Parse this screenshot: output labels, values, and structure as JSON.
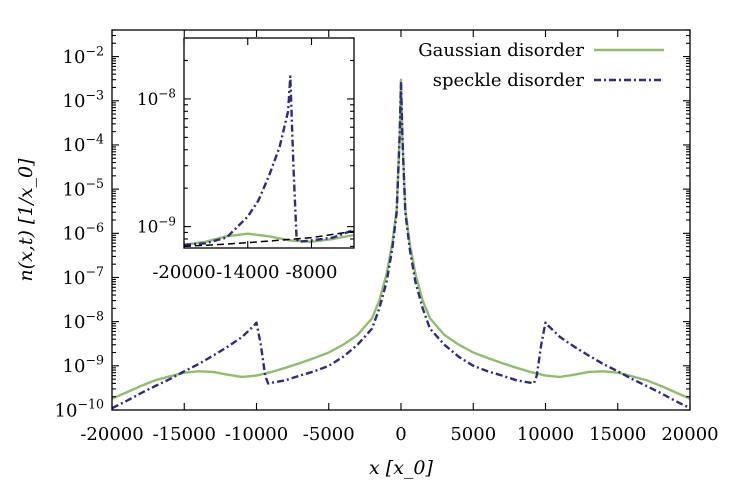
{
  "chart_data": {
    "type": "line",
    "title": "",
    "xlabel": "x [x_0]",
    "ylabel": "n(x,t) [1/x_0]",
    "xlim": [
      -20000,
      20000
    ],
    "ylim": [
      1e-10,
      0.04
    ],
    "yscale": "log",
    "grid": false,
    "legend_position": "top-right",
    "x_ticks": [
      -20000,
      -15000,
      -10000,
      -5000,
      0,
      5000,
      10000,
      15000,
      20000
    ],
    "x_tick_labels": [
      "-20000",
      "-15000",
      "-10000",
      "-5000",
      "0",
      "5000",
      "10000",
      "15000",
      "20000"
    ],
    "y_ticks": [
      1e-10,
      1e-09,
      1e-08,
      1e-07,
      1e-06,
      1e-05,
      0.0001,
      0.001,
      0.01
    ],
    "y_tick_labels": [
      {
        "base": "10",
        "exp": "−10"
      },
      {
        "base": "10",
        "exp": "−9"
      },
      {
        "base": "10",
        "exp": "−8"
      },
      {
        "base": "10",
        "exp": "−7"
      },
      {
        "base": "10",
        "exp": "−6"
      },
      {
        "base": "10",
        "exp": "−5"
      },
      {
        "base": "10",
        "exp": "−4"
      },
      {
        "base": "10",
        "exp": "−3"
      },
      {
        "base": "10",
        "exp": "−2"
      }
    ],
    "series": [
      {
        "name": "Gaussian disorder",
        "color": "#8fbe6b",
        "dash": "solid",
        "x": [
          -20000,
          -19000,
          -18000,
          -17000,
          -16000,
          -15000,
          -14000,
          -13000,
          -12000,
          -11000,
          -10000,
          -9000,
          -8000,
          -7000,
          -6000,
          -5000,
          -4000,
          -3000,
          -2000,
          -1500,
          -1000,
          -600,
          -300,
          -100,
          0,
          100,
          300,
          600,
          1000,
          1500,
          2000,
          3000,
          4000,
          5000,
          6000,
          7000,
          8000,
          9000,
          10000,
          11000,
          12000,
          13000,
          14000,
          15000,
          16000,
          17000,
          18000,
          19000,
          20000
        ],
        "y": [
          1.8e-10,
          2.5e-10,
          3.5e-10,
          4.7e-10,
          5.8e-10,
          7e-10,
          7.5e-10,
          7.3e-10,
          6.3e-10,
          5.6e-10,
          6e-10,
          7.2e-10,
          9e-10,
          1.15e-09,
          1.5e-09,
          2e-09,
          3e-09,
          5e-09,
          1.2e-08,
          3e-08,
          1.2e-07,
          6e-07,
          3.5e-06,
          0.00015,
          0.003,
          0.00015,
          3.5e-06,
          6e-07,
          1.2e-07,
          3e-08,
          1.2e-08,
          5e-09,
          3e-09,
          2e-09,
          1.5e-09,
          1.15e-09,
          9e-10,
          7.2e-10,
          6e-10,
          5.6e-10,
          6.3e-10,
          7.3e-10,
          7.5e-10,
          7e-10,
          5.8e-10,
          4.7e-10,
          3.5e-10,
          2.5e-10,
          1.8e-10
        ]
      },
      {
        "name": "speckle disorder",
        "color": "#2e2a86",
        "dash": "dash-dot",
        "x": [
          -20000,
          -19000,
          -18000,
          -17000,
          -16000,
          -15000,
          -14000,
          -13000,
          -12000,
          -11000,
          -10200,
          -10000,
          -9700,
          -9400,
          -9200,
          -8000,
          -7000,
          -6000,
          -5000,
          -4000,
          -3000,
          -2000,
          -1500,
          -1000,
          -600,
          -300,
          -100,
          0,
          100,
          300,
          600,
          1000,
          1500,
          2000,
          3000,
          4000,
          5000,
          6000,
          7000,
          8000,
          9200,
          9400,
          9700,
          10000,
          10200,
          11000,
          12000,
          13000,
          14000,
          15000,
          16000,
          17000,
          18000,
          19000,
          20000
        ],
        "y": [
          1.1e-10,
          1.6e-10,
          2.4e-10,
          3.5e-10,
          5e-10,
          7.5e-10,
          1.1e-09,
          1.7e-09,
          2.7e-09,
          4.5e-09,
          8e-09,
          9.5e-09,
          3e-09,
          6e-10,
          4e-10,
          4.7e-10,
          6e-10,
          7.5e-10,
          1e-09,
          1.6e-09,
          3e-09,
          7e-09,
          2e-08,
          8e-08,
          4.5e-07,
          3e-06,
          0.00015,
          0.0025,
          0.00015,
          3e-06,
          4.5e-07,
          8e-08,
          2e-08,
          7e-09,
          3e-09,
          1.6e-09,
          1e-09,
          7.5e-10,
          6e-10,
          4.7e-10,
          4e-10,
          6e-10,
          3e-09,
          9.5e-09,
          8e-09,
          4.5e-09,
          2.7e-09,
          1.7e-09,
          1.1e-09,
          7.5e-10,
          5e-10,
          3.5e-10,
          2.4e-10,
          1.6e-10,
          1.1e-10
        ]
      }
    ],
    "inset": {
      "xlim": [
        -20000,
        -4000
      ],
      "ylim": [
        6.8e-10,
        3e-08
      ],
      "yscale": "log",
      "x_ticks": [
        -20000,
        -14000,
        -8000
      ],
      "x_tick_labels": [
        "-20000",
        "-14000",
        "-8000"
      ],
      "y_ticks": [
        1e-09,
        1e-08
      ],
      "y_tick_labels": [
        {
          "base": "10",
          "exp": "−9"
        },
        {
          "base": "10",
          "exp": "−8"
        }
      ],
      "series": [
        {
          "name": "Gaussian disorder",
          "color": "#8fbe6b",
          "dash": "solid",
          "x": [
            -20000,
            -18000,
            -16000,
            -14000,
            -12000,
            -10000,
            -8000,
            -6000,
            -4000
          ],
          "y": [
            7.2e-10,
            7.6e-10,
            8.4e-10,
            8.8e-10,
            8.4e-10,
            7.8e-10,
            7.6e-10,
            8e-10,
            8.6e-10
          ]
        },
        {
          "name": "speckle disorder",
          "color": "#2e2a86",
          "dash": "dash-dot",
          "x": [
            -20000,
            -18000,
            -16000,
            -14000,
            -13000,
            -12000,
            -11000,
            -10200,
            -10000,
            -9700,
            -9400,
            -9200,
            -8000,
            -6000,
            -4000
          ],
          "y": [
            7.2e-10,
            7.4e-10,
            8.2e-10,
            1.2e-09,
            1.6e-09,
            2.5e-09,
            4.2e-09,
            8e-09,
            1.5e-08,
            3e-09,
            8e-10,
            7.6e-10,
            7.8e-10,
            8.2e-10,
            9.4e-10
          ]
        },
        {
          "name": "",
          "color": "#000000",
          "dash": "dashed",
          "x": [
            -20000,
            -16000,
            -12000,
            -8000,
            -4000
          ],
          "y": [
            7e-10,
            7.3e-10,
            7.7e-10,
            8.2e-10,
            9.2e-10
          ]
        }
      ]
    }
  }
}
